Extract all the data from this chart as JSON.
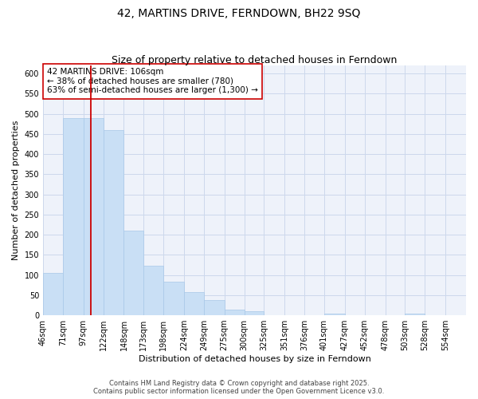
{
  "title": "42, MARTINS DRIVE, FERNDOWN, BH22 9SQ",
  "subtitle": "Size of property relative to detached houses in Ferndown",
  "xlabel": "Distribution of detached houses by size in Ferndown",
  "ylabel": "Number of detached properties",
  "bar_values": [
    105,
    490,
    490,
    460,
    210,
    122,
    83,
    58,
    37,
    15,
    11,
    0,
    0,
    0,
    5,
    0,
    0,
    0,
    5,
    0
  ],
  "tick_labels": [
    "46sqm",
    "71sqm",
    "97sqm",
    "122sqm",
    "148sqm",
    "173sqm",
    "198sqm",
    "224sqm",
    "249sqm",
    "275sqm",
    "300sqm",
    "325sqm",
    "351sqm",
    "376sqm",
    "401sqm",
    "427sqm",
    "452sqm",
    "478sqm",
    "503sqm",
    "528sqm",
    "554sqm"
  ],
  "bin_edges": [
    46,
    71,
    97,
    122,
    148,
    173,
    198,
    224,
    249,
    275,
    300,
    325,
    351,
    376,
    401,
    427,
    452,
    478,
    503,
    528,
    554
  ],
  "bar_color": "#c9dff5",
  "bar_edge_color": "#a8c8e8",
  "grid_color": "#ccd8ec",
  "background_color": "#eef2fa",
  "vline_x": 106,
  "vline_color": "#cc0000",
  "annotation_line1": "42 MARTINS DRIVE: 106sqm",
  "annotation_line2": "← 38% of detached houses are smaller (780)",
  "annotation_line3": "63% of semi-detached houses are larger (1,300) →",
  "ylim": [
    0,
    620
  ],
  "yticks": [
    0,
    50,
    100,
    150,
    200,
    250,
    300,
    350,
    400,
    450,
    500,
    550,
    600
  ],
  "footer_line1": "Contains HM Land Registry data © Crown copyright and database right 2025.",
  "footer_line2": "Contains public sector information licensed under the Open Government Licence v3.0.",
  "title_fontsize": 10,
  "subtitle_fontsize": 9,
  "axis_label_fontsize": 8,
  "tick_fontsize": 7,
  "annotation_fontsize": 7.5,
  "footer_fontsize": 6
}
